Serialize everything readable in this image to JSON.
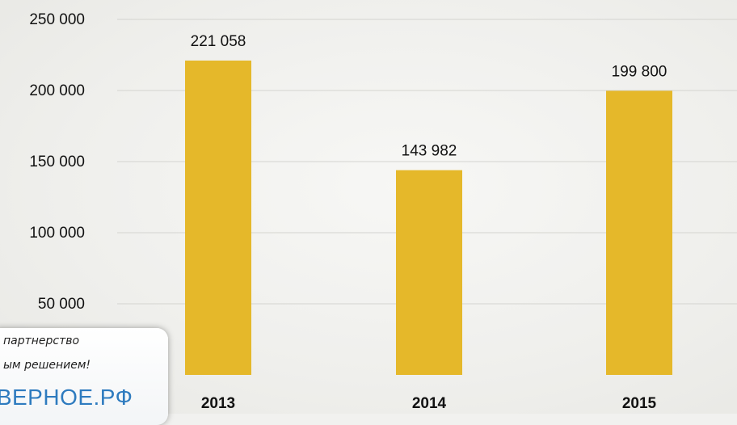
{
  "chart_data": {
    "type": "bar",
    "categories": [
      "2013",
      "2014",
      "2015"
    ],
    "values": [
      221058,
      143982,
      199800
    ],
    "value_labels": [
      "221 058",
      "143 982",
      "199 800"
    ],
    "y_ticks": [
      "50 000",
      "100 000",
      "150 000",
      "200 000",
      "250 000"
    ],
    "y_tick_values": [
      50000,
      100000,
      150000,
      200000,
      250000
    ],
    "ylim": [
      0,
      250000
    ],
    "grid": true,
    "title": "",
    "xlabel": "",
    "ylabel": "",
    "colors": {
      "bar": "#e5b82a",
      "grid": "#d4d4d0"
    }
  },
  "promo": {
    "line1": "партнерство",
    "line2": "ым решением!",
    "brand": "-ВЕРНОЕ.РФ"
  }
}
